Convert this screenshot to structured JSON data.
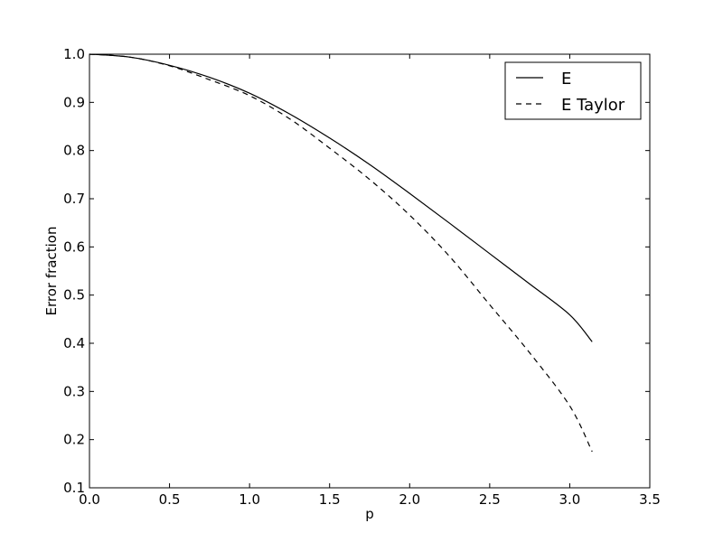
{
  "chart_data": {
    "type": "line",
    "title": "",
    "xlabel": "p",
    "ylabel": "Error fraction",
    "xlim": [
      0.0,
      3.5
    ],
    "ylim": [
      0.1,
      1.0
    ],
    "grid": false,
    "legend_position": "top-right",
    "x_ticks": [
      "0.0",
      "0.5",
      "1.0",
      "1.5",
      "2.0",
      "2.5",
      "3.0",
      "3.5"
    ],
    "y_ticks": [
      "0.1",
      "0.2",
      "0.3",
      "0.4",
      "0.5",
      "0.6",
      "0.7",
      "0.8",
      "0.9",
      "1.0"
    ],
    "x": [
      0.0,
      0.25,
      0.5,
      0.75,
      1.0,
      1.25,
      1.5,
      1.75,
      2.0,
      2.25,
      2.5,
      2.75,
      3.0,
      3.14
    ],
    "series": [
      {
        "name": "E",
        "style": "solid",
        "color": "#000000",
        "values": [
          1.0,
          0.994,
          0.977,
          0.952,
          0.919,
          0.876,
          0.826,
          0.771,
          0.711,
          0.649,
          0.586,
          0.523,
          0.459,
          0.403
        ]
      },
      {
        "name": "E Taylor",
        "style": "dashed",
        "color": "#000000",
        "values": [
          1.0,
          0.994,
          0.976,
          0.947,
          0.914,
          0.866,
          0.805,
          0.74,
          0.666,
          0.58,
          0.48,
          0.38,
          0.27,
          0.175
        ]
      }
    ]
  }
}
